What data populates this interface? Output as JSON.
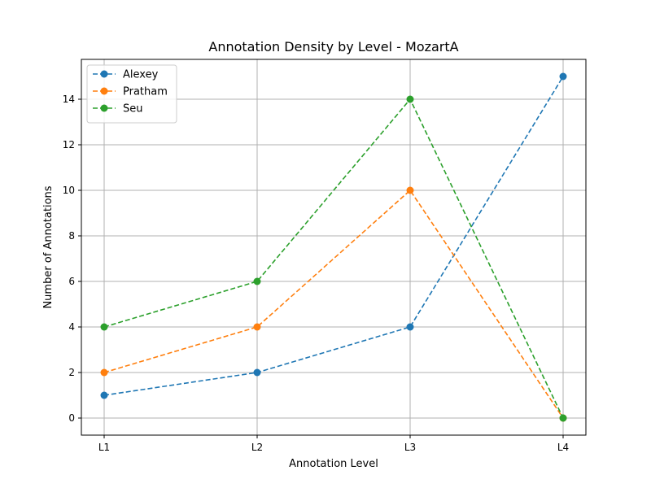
{
  "chart_data": {
    "type": "line",
    "title": "Annotation Density by Level - MozartA",
    "xlabel": "Annotation Level",
    "ylabel": "Number of Annotations",
    "categories": [
      "L1",
      "L2",
      "L3",
      "L4"
    ],
    "ylim": [
      -0.75,
      15.75
    ],
    "yticks": [
      0,
      2,
      4,
      6,
      8,
      10,
      12,
      14
    ],
    "grid": true,
    "legend_position": "top-left",
    "line_style": "dashed",
    "marker": "circle",
    "series": [
      {
        "name": "Alexey",
        "color": "#1f77b4",
        "values": [
          1,
          2,
          4,
          15
        ]
      },
      {
        "name": "Pratham",
        "color": "#ff7f0e",
        "values": [
          2,
          4,
          10,
          0
        ]
      },
      {
        "name": "Seu",
        "color": "#2ca02c",
        "values": [
          4,
          6,
          14,
          0
        ]
      }
    ]
  }
}
